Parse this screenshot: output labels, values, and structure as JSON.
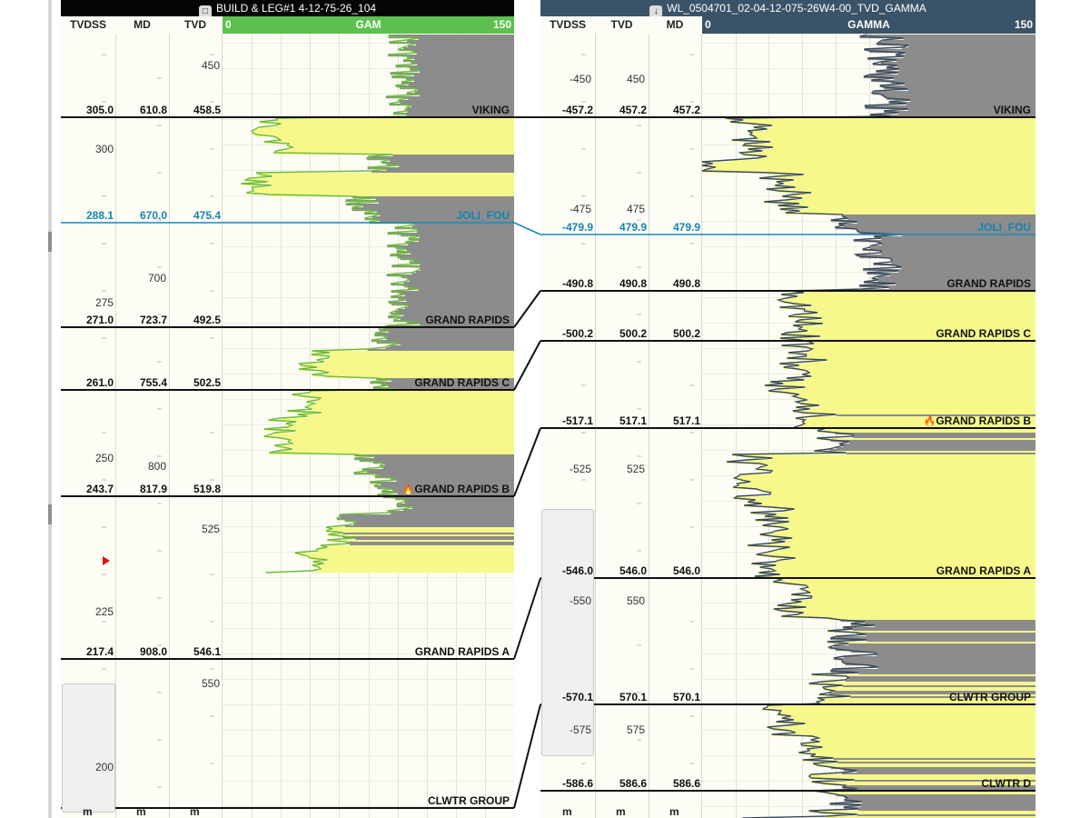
{
  "left_well": {
    "title": "BUILD & LEG#1 4-12-75-26_104",
    "title_icon": "folder-icon",
    "columns": [
      "TVDSS",
      "MD",
      "TVD"
    ],
    "track": {
      "curve": "GAM",
      "min": "0",
      "max": "150",
      "header_color": "#5cc14e",
      "line_color": "#6dbb3f"
    },
    "units": [
      "m",
      "m",
      "m"
    ],
    "tvdss_scale": [
      "300",
      "275",
      "250",
      "225",
      "200"
    ],
    "md_scale": [
      "700",
      "800"
    ],
    "tvd_scale": [
      "450",
      "525",
      "550"
    ],
    "tops": [
      {
        "name": "VIKING",
        "tvdss": "305.0",
        "md": "610.8",
        "tvd": "458.5",
        "icon": ""
      },
      {
        "name": "JOLI_FOU",
        "tvdss": "288.1",
        "md": "670.0",
        "tvd": "475.4",
        "icon": ""
      },
      {
        "name": "GRAND RAPIDS",
        "tvdss": "271.0",
        "md": "723.7",
        "tvd": "492.5",
        "icon": ""
      },
      {
        "name": "GRAND RAPIDS C",
        "tvdss": "261.0",
        "md": "755.4",
        "tvd": "502.5",
        "icon": ""
      },
      {
        "name": "GRAND RAPIDS B",
        "tvdss": "243.7",
        "md": "817.9",
        "tvd": "519.8",
        "icon": "flame-icon"
      },
      {
        "name": "GRAND RAPIDS A",
        "tvdss": "217.4",
        "md": "908.0",
        "tvd": "546.1",
        "icon": ""
      },
      {
        "name": "CLWTR GROUP",
        "tvdss": "",
        "md": "",
        "tvd": "",
        "icon": ""
      }
    ]
  },
  "right_well": {
    "title": "WL_0504701_02-04-12-075-26W4-00_TVD_GAMMA",
    "title_icon": "download-icon",
    "columns": [
      "TVDSS",
      "TVD",
      "MD"
    ],
    "track": {
      "curve": "GAMMA",
      "min": "0",
      "max": "150",
      "header_color": "#3b5366",
      "line_color": "#3a4a5a"
    },
    "units": [
      "m",
      "m",
      "m"
    ],
    "tvdss_scale": [
      "-450",
      "-475",
      "-525",
      "-550",
      "-575"
    ],
    "tvd_scale": [
      "450",
      "475",
      "525",
      "550",
      "575"
    ],
    "tops": [
      {
        "name": "VIKING",
        "tvdss": "-457.2",
        "tvd": "457.2",
        "md": "457.2",
        "icon": ""
      },
      {
        "name": "JOLI_FOU",
        "tvdss": "-479.9",
        "tvd": "479.9",
        "md": "479.9",
        "icon": ""
      },
      {
        "name": "GRAND RAPIDS",
        "tvdss": "-490.8",
        "tvd": "490.8",
        "md": "490.8",
        "icon": ""
      },
      {
        "name": "GRAND RAPIDS C",
        "tvdss": "-500.2",
        "tvd": "500.2",
        "md": "500.2",
        "icon": ""
      },
      {
        "name": "GRAND RAPIDS B",
        "tvdss": "-517.1",
        "tvd": "517.1",
        "md": "517.1",
        "icon": "flame-icon"
      },
      {
        "name": "GRAND RAPIDS A",
        "tvdss": "-546.0",
        "tvd": "546.0",
        "md": "546.0",
        "icon": ""
      },
      {
        "name": "CLWTR GROUP",
        "tvdss": "-570.1",
        "tvd": "570.1",
        "md": "570.1",
        "icon": ""
      },
      {
        "name": "CLWTR D",
        "tvdss": "-586.6",
        "tvd": "586.6",
        "md": "586.6",
        "icon": ""
      }
    ]
  },
  "colors": {
    "sand_fill": "#f6f98a",
    "shale_fill": "#8c8c8c",
    "joli_fou_line": "#1b86b8",
    "top_line": "#111111"
  }
}
